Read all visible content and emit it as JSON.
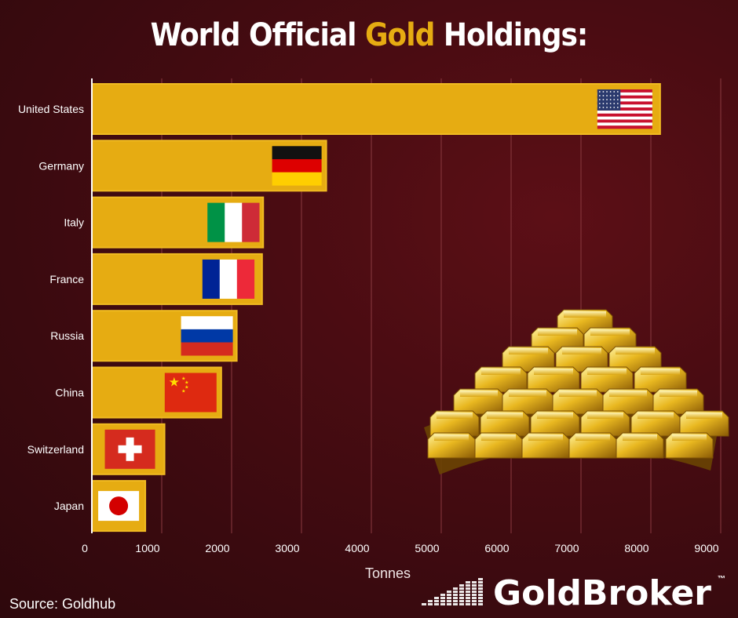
{
  "title": {
    "part1": "World Official ",
    "highlight": "Gold",
    "part2": " Holdings:"
  },
  "source": "Source: Goldhub",
  "brand": {
    "name": "GoldBroker",
    "tm": "™"
  },
  "colors": {
    "bar": "#e6ac12",
    "bar_edge": "#f0bb22",
    "background": "#4a0c12",
    "grid": "#8a3a40"
  },
  "chart_data": {
    "type": "bar",
    "orientation": "horizontal",
    "categories": [
      "United States",
      "Germany",
      "Italy",
      "France",
      "Russia",
      "China",
      "Switzerland",
      "Japan"
    ],
    "values": [
      8133,
      3355,
      2452,
      2436,
      2074,
      1852,
      1040,
      765
    ],
    "xlabel": "Tonnes",
    "ylabel": "",
    "xlim": [
      0,
      9000
    ],
    "xticks": [
      0,
      1000,
      2000,
      3000,
      4000,
      5000,
      6000,
      7000,
      8000,
      9000
    ],
    "grid": true,
    "flags": [
      "us-flag-icon",
      "germany-flag-icon",
      "italy-flag-icon",
      "france-flag-icon",
      "russia-flag-icon",
      "china-flag-icon",
      "switzerland-flag-icon",
      "japan-flag-icon"
    ]
  }
}
